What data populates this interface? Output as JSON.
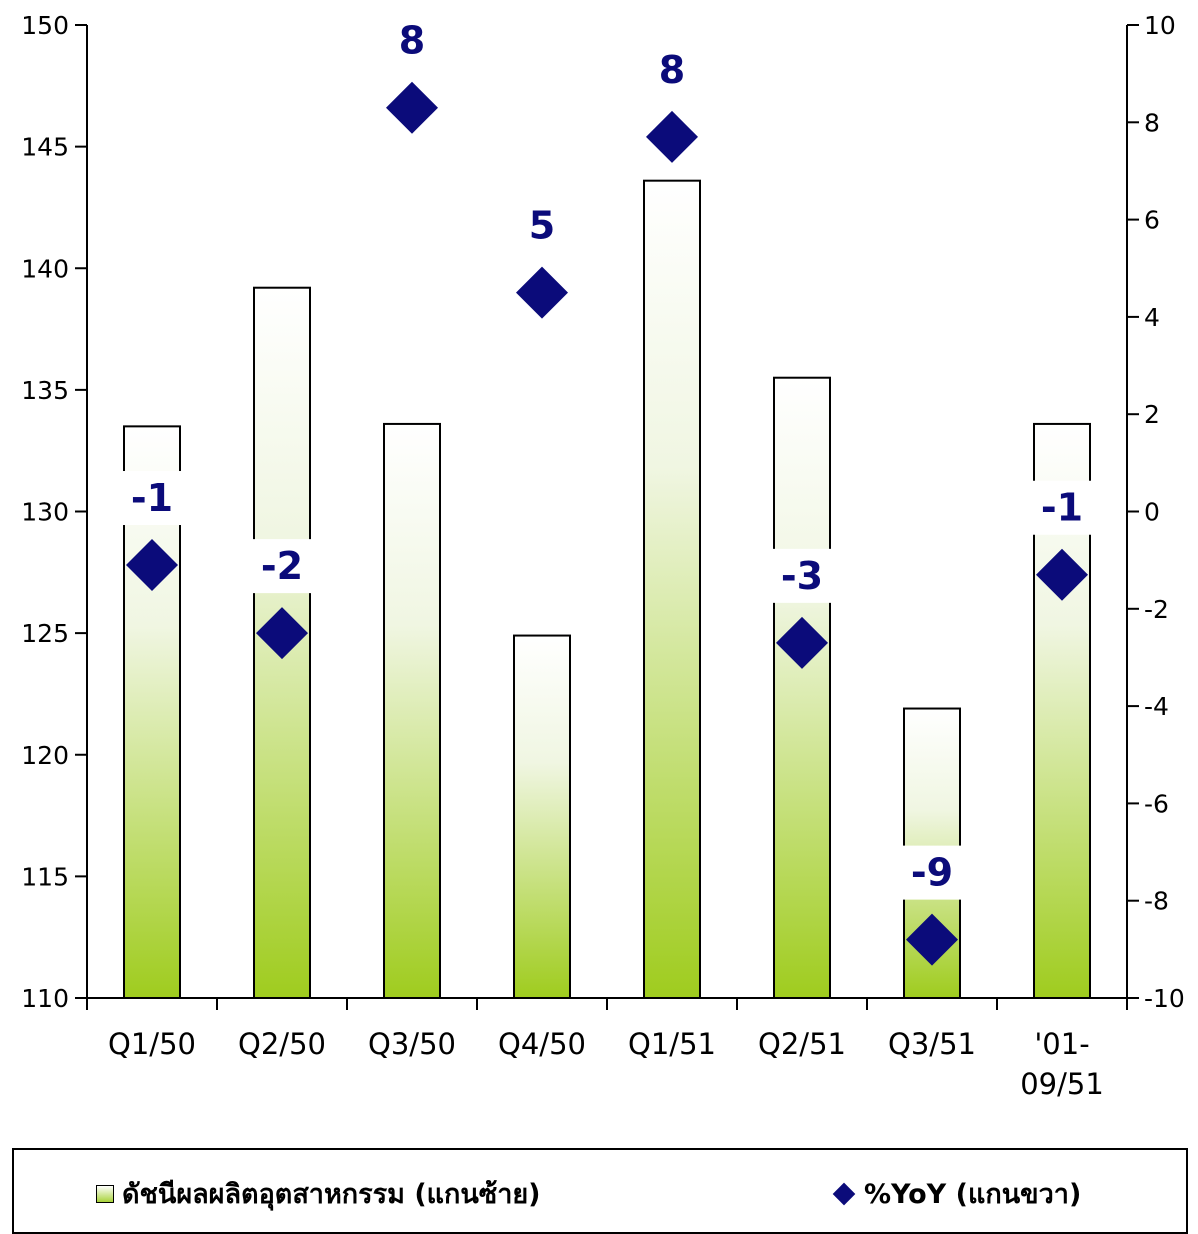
{
  "chart_data": {
    "type": "bar",
    "categories": [
      "Q1/50",
      "Q2/50",
      "Q3/50",
      "Q4/50",
      "Q1/51",
      "Q2/51",
      "Q3/51",
      "'01-09/51"
    ],
    "category_lines": [
      [
        "Q1/50"
      ],
      [
        "Q2/50"
      ],
      [
        "Q3/50"
      ],
      [
        "Q4/50"
      ],
      [
        "Q1/51"
      ],
      [
        "Q2/51"
      ],
      [
        "Q3/51"
      ],
      [
        "'01-",
        "09/51"
      ]
    ],
    "series": [
      {
        "name": "ดัชนีผลผลิตอุตสาหกรรม (แกนซ้าย)",
        "type": "bar",
        "axis": "left",
        "values": [
          133.5,
          139.2,
          133.6,
          124.9,
          143.6,
          135.5,
          121.9,
          133.6
        ]
      },
      {
        "name": "%YoY (แกนขวา)",
        "type": "scatter",
        "axis": "right",
        "values": [
          -1.1,
          -2.5,
          8.3,
          4.5,
          7.7,
          -2.7,
          -8.8,
          -1.3
        ],
        "labels": [
          "-1",
          "-2",
          "8",
          "5",
          "8",
          "-3",
          "-9",
          "-1"
        ]
      }
    ],
    "left_axis": {
      "ylim": [
        110,
        150
      ],
      "ticks": [
        110,
        115,
        120,
        125,
        130,
        135,
        140,
        145,
        150
      ]
    },
    "right_axis": {
      "ylim": [
        -10,
        10
      ],
      "ticks": [
        -10,
        -8,
        -6,
        -4,
        -2,
        0,
        2,
        4,
        6,
        8,
        10
      ]
    },
    "legend_position": "bottom",
    "grid": false,
    "colors": {
      "bar_top": "#ffffff",
      "bar_bottom": "#9fcc1e",
      "marker": "#0b0b7a",
      "label": "#0b0b7a"
    }
  },
  "legend": {
    "bar_label": "ดัชนีผลผลิตอุตสาหกรรม (แกนซ้าย)",
    "marker_label": "%YoY (แกนขวา)"
  }
}
